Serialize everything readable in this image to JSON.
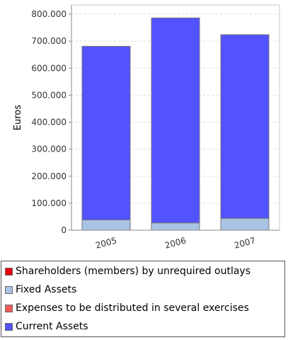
{
  "chart_data": {
    "type": "bar",
    "stacked": true,
    "categories": [
      "2005",
      "2006",
      "2007"
    ],
    "series": [
      {
        "name": "Shareholders (members) by unrequired outlays",
        "color": "#e8000b",
        "values": [
          0,
          0,
          0
        ]
      },
      {
        "name": "Fixed Assets",
        "color": "#a9c4e3",
        "values": [
          38000,
          27000,
          44000
        ]
      },
      {
        "name": "Expenses to be distributed in several exercises",
        "color": "#f55a5a",
        "values": [
          0,
          0,
          0
        ]
      },
      {
        "name": "Current Assets",
        "color": "#5252ff",
        "values": [
          643000,
          759000,
          680000
        ]
      }
    ],
    "ylabel": "Euros",
    "ylim": [
      0,
      820000
    ],
    "yticks": [
      0,
      100000,
      200000,
      300000,
      400000,
      500000,
      600000,
      700000,
      800000
    ],
    "ytick_labels": [
      "0",
      "100.000",
      "200.000",
      "300.000",
      "400.000",
      "500.000",
      "600.000",
      "700.000",
      "800.000"
    ],
    "grid": true,
    "legend_position": "bottom"
  }
}
